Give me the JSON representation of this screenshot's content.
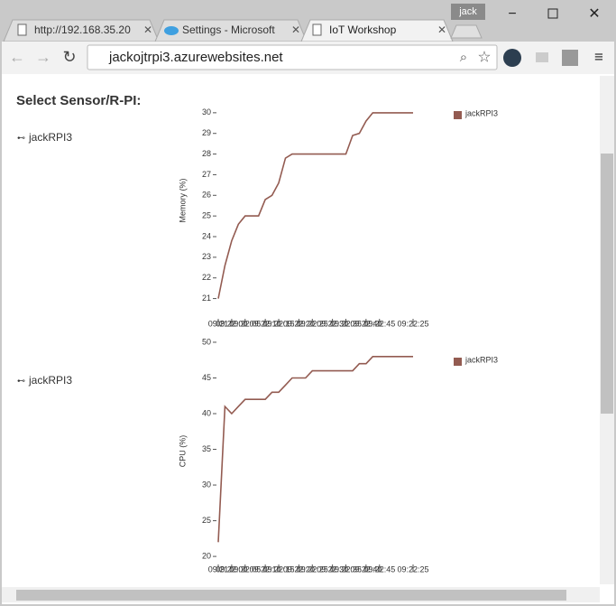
{
  "browser": {
    "user": "jack",
    "tabs": [
      "http://192.168.35.20",
      "Settings - Microsoft",
      "IoT Workshop"
    ],
    "url": "jackojtrpi3.azurewebsites.net"
  },
  "page": {
    "heading": "Select Sensor/R-PI:",
    "sensors": [
      "jackRPI3",
      "jackRPI3"
    ]
  },
  "chart_data": [
    {
      "type": "line",
      "y_label": "Memory (%)",
      "categories": [
        "09:21",
        null,
        "09:22:00",
        null,
        "09:22:05",
        null,
        null,
        "09:22:10",
        null,
        "09:22:15",
        null,
        null,
        "09:22:20",
        null,
        "09:22:25",
        null,
        null,
        "09:22:30",
        null,
        "09:22:35",
        null,
        null,
        "09:22:40",
        null,
        "09:22:45",
        null,
        null,
        null,
        null,
        "09:22:25"
      ],
      "series": [
        {
          "name": "jackRPI3",
          "color": "#935b51",
          "values": [
            21,
            22.6,
            23.8,
            24.6,
            25,
            25,
            25,
            25.8,
            26,
            26.6,
            27.8,
            28,
            28,
            28,
            28,
            28,
            28,
            28,
            28,
            28,
            28.9,
            29,
            29.6,
            30,
            30,
            30,
            30,
            30,
            30,
            30
          ]
        }
      ],
      "ylim": [
        20.5,
        31
      ],
      "yticks": [
        21,
        22,
        23,
        24,
        25,
        26,
        27,
        28,
        29,
        30
      ]
    },
    {
      "type": "line",
      "y_label": "CPU (%)",
      "categories": [
        "09:21",
        null,
        "09:22:00",
        null,
        "09:22:05",
        null,
        null,
        "09:22:10",
        null,
        "09:22:15",
        null,
        null,
        "09:22:20",
        null,
        "09:22:25",
        null,
        null,
        "09:22:30",
        null,
        "09:22:35",
        null,
        null,
        "09:22:40",
        null,
        "09:22:45",
        null,
        null,
        null,
        null,
        "09:22:25"
      ],
      "series": [
        {
          "name": "jackRPI3",
          "color": "#935b51",
          "values": [
            22,
            41,
            40,
            41,
            42,
            42,
            42,
            42,
            43,
            43,
            44,
            45,
            45,
            45,
            46,
            46,
            46,
            46,
            46,
            46,
            46,
            47,
            47,
            48,
            48,
            48,
            48,
            48,
            48,
            48
          ]
        }
      ],
      "ylim": [
        19,
        50.5
      ],
      "yticks": [
        20,
        25,
        30,
        35,
        40,
        45,
        50
      ]
    }
  ]
}
